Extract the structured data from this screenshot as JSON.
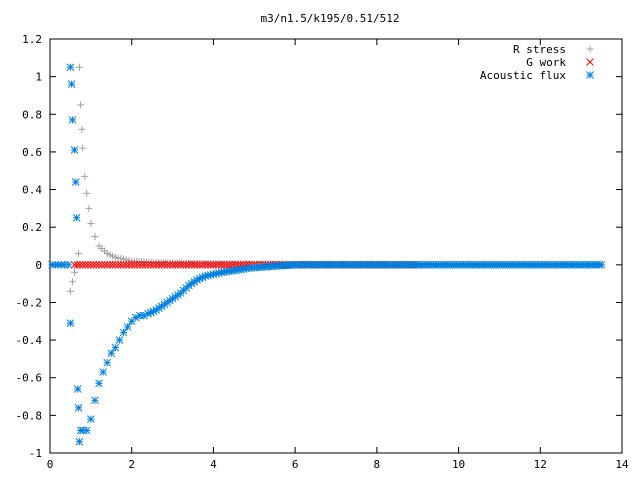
{
  "chart_data": {
    "type": "scatter",
    "title": "m3/n1.5/k195/0.51/512",
    "xlabel": "",
    "ylabel": "",
    "xlim": [
      0,
      14
    ],
    "ylim": [
      -1,
      1.2
    ],
    "x_ticks": [
      "0",
      "2",
      "4",
      "6",
      "8",
      "10",
      "12",
      "14"
    ],
    "y_ticks": [
      "1.2",
      "1",
      "0.8",
      "0.6",
      "0.4",
      "0.2",
      "0",
      "-0.2",
      "-0.4",
      "-0.6",
      "-0.8",
      "-1"
    ],
    "grid": false,
    "legend_position": "top-right",
    "series": [
      {
        "name": "R stress",
        "marker": "plus",
        "color": "#a0a0a0",
        "x": [
          0.5,
          0.55,
          0.6,
          0.65,
          0.7,
          0.72,
          0.75,
          0.78,
          0.8,
          0.85,
          0.9,
          0.95,
          1.0,
          1.1,
          1.2,
          1.4,
          1.6,
          1.8,
          2.0,
          2.3,
          2.6,
          3.0,
          3.5,
          4.0,
          4.5,
          5.0,
          5.5,
          6.0,
          7.0,
          8.0,
          9.0
        ],
        "y": [
          -0.14,
          -0.09,
          -0.04,
          0.0,
          0.06,
          1.05,
          0.85,
          0.72,
          0.62,
          0.47,
          0.38,
          0.3,
          0.22,
          0.15,
          0.1,
          0.06,
          0.04,
          0.03,
          0.02,
          0.015,
          0.012,
          0.01,
          0.008,
          0.006,
          0.005,
          0.004,
          0.003,
          0.002,
          0.001,
          0.001,
          0.0
        ]
      },
      {
        "name": "G work",
        "marker": "cross",
        "color": "#ff0000",
        "x": [
          0.6,
          0.8,
          1.0,
          1.2,
          1.4,
          1.6,
          1.8,
          2.0,
          2.2,
          2.4,
          2.6,
          2.8,
          3.0,
          3.2,
          3.4,
          3.6,
          3.8,
          4.0,
          4.2,
          4.4,
          4.6,
          4.8,
          5.0,
          5.2,
          5.4,
          5.6,
          5.8,
          6.0,
          6.2,
          6.4,
          6.6,
          6.8,
          7.0,
          7.2,
          7.4,
          7.6,
          7.8,
          8.0,
          8.2,
          8.4,
          8.6,
          8.8,
          9.0
        ],
        "y": [
          0.0,
          0.0,
          0.0,
          0.0,
          0.0,
          0.0,
          0.0,
          0.0,
          0.0,
          0.0,
          0.0,
          0.0,
          0.0,
          0.0,
          0.0,
          0.0,
          0.0,
          0.0,
          0.0,
          0.0,
          0.0,
          0.0,
          0.0,
          0.0,
          0.0,
          0.0,
          0.0,
          0.0,
          0.0,
          0.0,
          0.0,
          0.0,
          0.0,
          0.0,
          0.0,
          0.0,
          0.0,
          0.0,
          0.0,
          0.0,
          0.0,
          0.0,
          0.0
        ]
      },
      {
        "name": "Acoustic flux",
        "marker": "star",
        "color": "#0080e0",
        "x": [
          0.05,
          0.2,
          0.35,
          0.45,
          0.5,
          0.5,
          0.53,
          0.55,
          0.6,
          0.63,
          0.65,
          0.68,
          0.7,
          0.72,
          0.75,
          0.8,
          0.9,
          1.0,
          1.1,
          1.2,
          1.3,
          1.4,
          1.5,
          1.6,
          1.7,
          1.8,
          1.9,
          2.0,
          2.1,
          2.2,
          2.3,
          2.4,
          2.6,
          2.8,
          3.0,
          3.2,
          3.4,
          3.6,
          3.8,
          4.0,
          4.2,
          4.5,
          4.8,
          5.0,
          5.3,
          5.6,
          6.0,
          7.0,
          8.0,
          9.0,
          10.0,
          11.0,
          12.0,
          13.0,
          13.5
        ],
        "y": [
          0.0,
          0.0,
          0.0,
          0.0,
          1.05,
          -0.31,
          0.96,
          0.77,
          0.61,
          0.44,
          0.25,
          -0.66,
          -0.76,
          -0.94,
          -0.88,
          -0.88,
          -0.88,
          -0.82,
          -0.72,
          -0.63,
          -0.57,
          -0.52,
          -0.47,
          -0.44,
          -0.4,
          -0.36,
          -0.33,
          -0.3,
          -0.28,
          -0.27,
          -0.27,
          -0.26,
          -0.24,
          -0.21,
          -0.18,
          -0.15,
          -0.11,
          -0.08,
          -0.06,
          -0.05,
          -0.04,
          -0.03,
          -0.02,
          -0.015,
          -0.01,
          -0.005,
          0.0,
          0.0,
          0.0,
          0.0,
          0.0,
          0.0,
          0.0,
          0.0,
          0.0
        ]
      }
    ]
  }
}
